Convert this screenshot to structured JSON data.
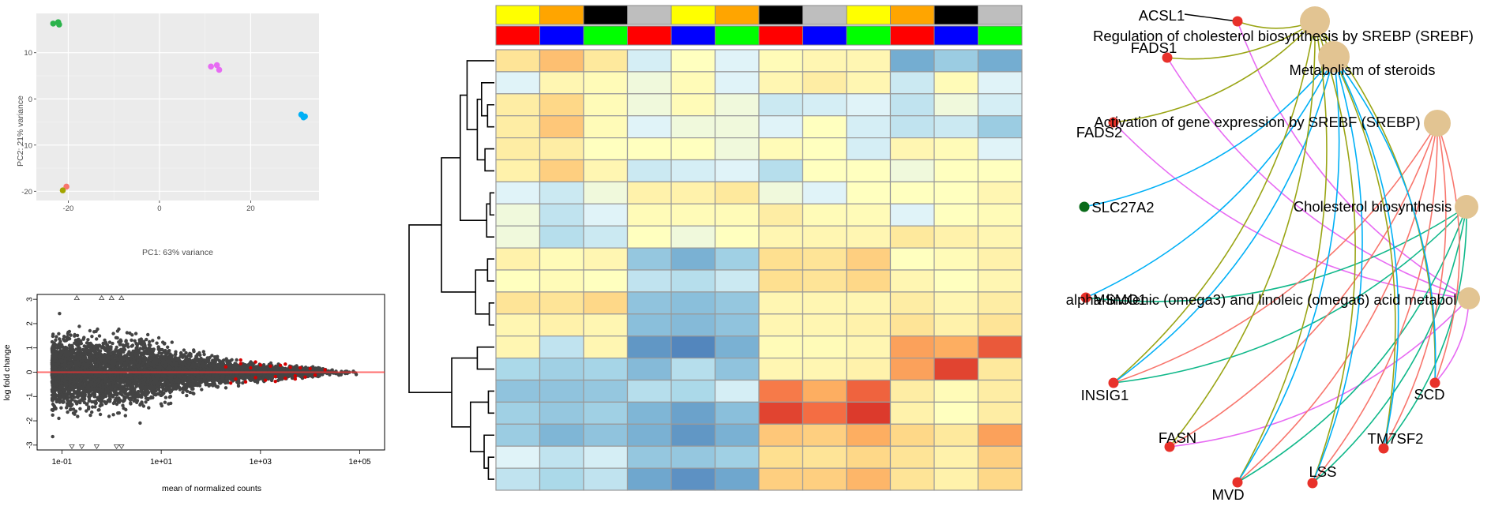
{
  "chart_data": [
    {
      "id": "pca",
      "type": "scatter",
      "title": "",
      "xlabel": "PC1: 63% variance",
      "ylabel": "PC2: 21% variance",
      "xlim": [
        -27,
        35
      ],
      "ylim": [
        -22,
        18.5
      ],
      "xticks": [
        "-20",
        "0",
        "20"
      ],
      "xtick_values": [
        -20,
        0,
        20
      ],
      "yticks": [
        "-20",
        "-10",
        "0",
        "10"
      ],
      "ytick_values": [
        -20,
        -10,
        0,
        10
      ],
      "grid": true,
      "background": "#ebebeb",
      "series": [
        {
          "color": "#2bb34b",
          "points": [
            [
              -23.3,
              16.3
            ],
            [
              -22.2,
              16.6
            ],
            [
              -22.0,
              16.1
            ]
          ]
        },
        {
          "color": "#e76bf3",
          "points": [
            [
              11.3,
              7.0
            ],
            [
              12.6,
              7.3
            ],
            [
              13.1,
              6.3
            ]
          ]
        },
        {
          "color": "#00b0f6",
          "points": [
            [
              31.1,
              -3.4
            ],
            [
              31.6,
              -4.0
            ],
            [
              31.9,
              -3.8
            ]
          ]
        },
        {
          "color": "#f8766d",
          "points": [
            [
              -20.4,
              -19.0
            ]
          ]
        },
        {
          "color": "#a3a500",
          "points": [
            [
              -21.2,
              -19.8
            ]
          ]
        }
      ]
    },
    {
      "id": "ma-plot",
      "type": "scatter",
      "title": "",
      "xlabel": "mean of normalized counts",
      "ylabel": "log fold change",
      "xscale": "log",
      "xlim_log10": [
        -1.5,
        5.5
      ],
      "ylim": [
        -3.2,
        3.2
      ],
      "xticks": [
        "1e-01",
        "1e+01",
        "1e+03",
        "1e+05"
      ],
      "xtick_log10": [
        -1,
        1,
        3,
        5
      ],
      "yticks": [
        "-3",
        "-2",
        "-1",
        "0",
        "1",
        "2",
        "3"
      ],
      "ytick_values": [
        -3,
        -2,
        -1,
        0,
        1,
        2,
        3
      ],
      "reference_line": 0,
      "reference_color": "#ff3030",
      "point_color": "#444444",
      "significant_color": "#d40000",
      "significant_points": [
        [
          2.3,
          0.22
        ],
        [
          2.5,
          -0.28
        ],
        [
          2.6,
          0.35
        ],
        [
          2.7,
          -0.4
        ],
        [
          2.8,
          0.18
        ],
        [
          2.9,
          -0.22
        ],
        [
          3.0,
          0.3
        ],
        [
          3.1,
          -0.33
        ],
        [
          3.2,
          0.25
        ],
        [
          3.3,
          -0.18
        ],
        [
          3.4,
          0.28
        ],
        [
          3.5,
          -0.25
        ],
        [
          3.6,
          0.2
        ],
        [
          3.7,
          -0.15
        ],
        [
          3.8,
          0.18
        ],
        [
          3.9,
          -0.2
        ],
        [
          4.0,
          0.15
        ],
        [
          2.4,
          -0.45
        ],
        [
          2.6,
          0.5
        ],
        [
          2.9,
          0.42
        ],
        [
          3.3,
          -0.38
        ],
        [
          3.5,
          0.33
        ],
        [
          3.7,
          -0.28
        ],
        [
          4.1,
          -0.12
        ],
        [
          4.3,
          0.1
        ]
      ],
      "outlier_up": [
        -0.7,
        -0.2,
        0.0,
        0.2
      ],
      "outlier_down": [
        -0.8,
        -0.6,
        -0.3,
        0.1,
        0.2
      ]
    },
    {
      "id": "heatmap",
      "type": "heatmap",
      "title": "",
      "column_annotation_1": [
        "#ffff00",
        "#ffa500",
        "#000000",
        "#bebebe",
        "#ffff00",
        "#ffa500",
        "#000000",
        "#bebebe",
        "#ffff00",
        "#ffa500",
        "#000000",
        "#bebebe"
      ],
      "column_annotation_2": [
        "#ff0000",
        "#0000ff",
        "#00ff00",
        "#ff0000",
        "#0000ff",
        "#00ff00",
        "#ff0000",
        "#0000ff",
        "#00ff00",
        "#ff0000",
        "#0000ff",
        "#00ff00"
      ],
      "values": [
        [
          0.8,
          1.3,
          0.7,
          -0.1,
          0.2,
          0.0,
          0.3,
          0.4,
          0.4,
          -1.5,
          -0.8,
          -1.5
        ],
        [
          0.0,
          0.4,
          0.3,
          0.1,
          0.3,
          0.0,
          0.4,
          0.6,
          0.4,
          -0.2,
          0.3,
          0.0
        ],
        [
          0.6,
          1.0,
          0.3,
          0.1,
          0.3,
          0.1,
          -0.2,
          -0.1,
          0.0,
          -0.3,
          0.1,
          -0.1
        ],
        [
          0.6,
          1.2,
          0.3,
          0.0,
          0.1,
          0.1,
          0.0,
          0.2,
          -0.1,
          -0.3,
          -0.2,
          -0.8
        ],
        [
          0.6,
          0.6,
          0.2,
          0.2,
          0.2,
          0.1,
          0.3,
          0.2,
          -0.1,
          0.4,
          0.3,
          0.0
        ],
        [
          0.5,
          1.1,
          0.4,
          -0.2,
          -0.1,
          0.0,
          -0.4,
          0.2,
          0.2,
          0.1,
          0.2,
          0.2
        ],
        [
          0.0,
          -0.2,
          0.1,
          0.5,
          0.5,
          0.7,
          0.1,
          0.0,
          0.2,
          0.2,
          0.2,
          0.4
        ],
        [
          0.1,
          -0.3,
          0.0,
          0.3,
          0.3,
          0.3,
          0.6,
          0.3,
          0.3,
          0.0,
          0.2,
          0.3
        ],
        [
          0.1,
          -0.4,
          -0.2,
          0.2,
          0.1,
          0.2,
          0.4,
          0.4,
          0.4,
          0.7,
          0.5,
          0.4
        ],
        [
          0.5,
          0.3,
          0.4,
          -0.9,
          -1.4,
          -0.7,
          0.9,
          0.8,
          1.1,
          0.2,
          0.3,
          0.5
        ],
        [
          0.2,
          0.3,
          0.2,
          -0.3,
          -0.4,
          -0.2,
          0.9,
          0.8,
          1.0,
          0.4,
          0.2,
          0.4
        ],
        [
          0.8,
          0.8,
          1.0,
          -1.0,
          -1.1,
          -0.9,
          0.4,
          0.4,
          0.4,
          0.6,
          0.4,
          0.6
        ],
        [
          0.4,
          0.5,
          0.4,
          -1.1,
          -1.2,
          -1.0,
          0.4,
          0.4,
          0.5,
          0.8,
          0.5,
          0.8
        ],
        [
          0.4,
          -0.3,
          0.4,
          -1.9,
          -2.2,
          -1.4,
          0.3,
          0.3,
          0.4,
          1.6,
          1.5,
          2.2
        ],
        [
          -0.5,
          -0.7,
          -0.6,
          -1.2,
          -0.4,
          -1.0,
          0.4,
          0.4,
          0.5,
          1.6,
          2.4,
          0.7
        ],
        [
          -1.0,
          -1.0,
          -0.9,
          -0.4,
          -0.5,
          -0.1,
          1.9,
          1.5,
          2.1,
          0.6,
          0.3,
          0.6
        ],
        [
          -0.7,
          -0.9,
          -0.7,
          -1.3,
          -1.7,
          -1.1,
          2.4,
          2.0,
          2.5,
          0.5,
          0.2,
          0.6
        ],
        [
          -0.8,
          -1.3,
          -1.0,
          -1.4,
          -1.9,
          -1.4,
          1.2,
          1.1,
          1.5,
          1.0,
          0.7,
          1.6
        ],
        [
          0.0,
          -0.3,
          -0.1,
          -0.9,
          -0.9,
          -0.7,
          0.9,
          0.8,
          1.0,
          0.8,
          0.5,
          1.1
        ],
        [
          -0.3,
          -0.5,
          -0.3,
          -1.6,
          -2.0,
          -1.6,
          1.1,
          1.1,
          1.4,
          0.8,
          0.5,
          1.0
        ]
      ]
    },
    {
      "id": "cnet",
      "type": "network",
      "title": "",
      "pathways": [
        {
          "label": "Regulation of cholesterol biosynthesis by SREBP (SREBF)",
          "color": "#9aa515"
        },
        {
          "label": "Metabolism of steroids",
          "color": "#00b0f6"
        },
        {
          "label": "Activation of gene expression by SREBF (SREBP)",
          "color": "#f8766d"
        },
        {
          "label": "Cholesterol biosynthesis",
          "color": "#10b88a"
        },
        {
          "label": "alpha-linolenic (omega3) and linoleic (omega6) acid metabol",
          "color": "#e76bf3"
        }
      ],
      "genes": [
        {
          "label": "ACSL1",
          "color": "#e8312a"
        },
        {
          "label": "FADS1",
          "color": "#e8312a"
        },
        {
          "label": "FADS2",
          "color": "#e8312a"
        },
        {
          "label": "SLC27A2",
          "color": "#0a6b1a"
        },
        {
          "label": "MSMO1",
          "color": "#e8312a"
        },
        {
          "label": "INSIG1",
          "color": "#e8312a"
        },
        {
          "label": "FASN",
          "color": "#e8312a"
        },
        {
          "label": "MVD",
          "color": "#e8312a"
        },
        {
          "label": "LSS",
          "color": "#e8312a"
        },
        {
          "label": "TM7SF2",
          "color": "#e8312a"
        },
        {
          "label": "SCD",
          "color": "#e8312a"
        }
      ],
      "pathway_node_color": "#e2c492"
    }
  ]
}
